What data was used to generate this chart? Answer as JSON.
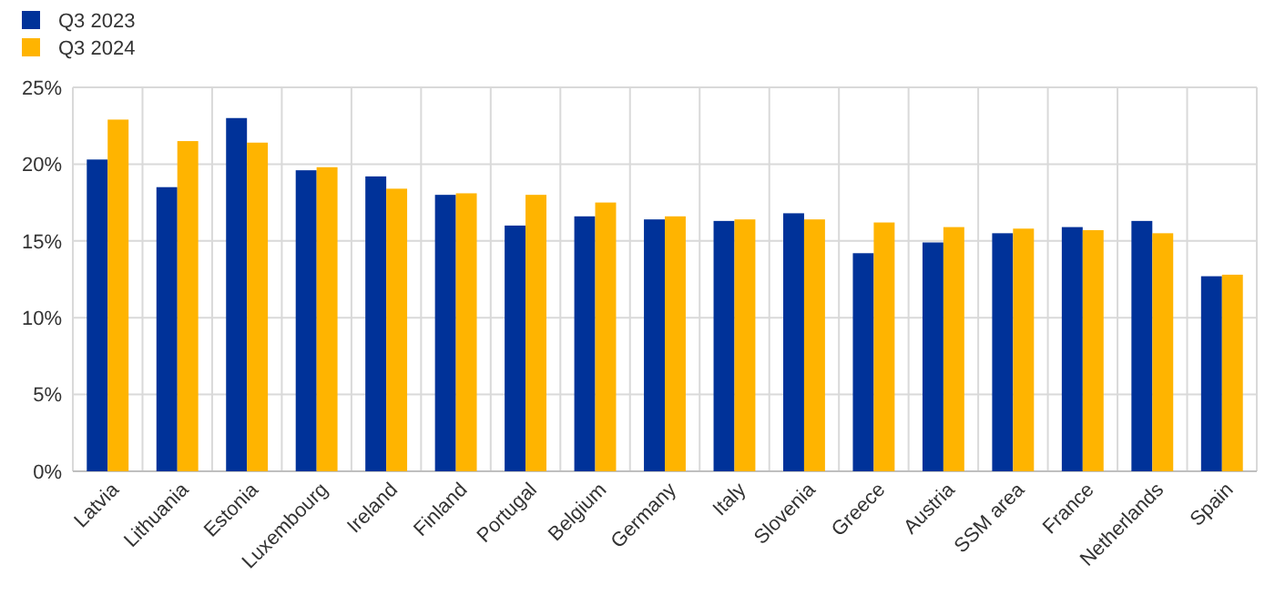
{
  "chart_data": {
    "type": "bar",
    "categories": [
      "Latvia",
      "Lithuania",
      "Estonia",
      "Luxembourg",
      "Ireland",
      "Finland",
      "Portugal",
      "Belgium",
      "Germany",
      "Italy",
      "Slovenia",
      "Greece",
      "Austria",
      "SSM area",
      "France",
      "Netherlands",
      "Spain"
    ],
    "series": [
      {
        "name": "Q3 2023",
        "color": "#003299",
        "values": [
          20.3,
          18.5,
          23.0,
          19.6,
          19.2,
          18.0,
          16.0,
          16.6,
          16.4,
          16.3,
          16.8,
          14.2,
          14.9,
          15.5,
          15.9,
          16.3,
          12.7
        ]
      },
      {
        "name": "Q3 2024",
        "color": "#ffb400",
        "values": [
          22.9,
          21.5,
          21.4,
          19.8,
          18.4,
          18.1,
          18.0,
          17.5,
          16.6,
          16.4,
          16.4,
          16.2,
          15.9,
          15.8,
          15.7,
          15.5,
          12.8
        ]
      }
    ],
    "ylim": [
      0,
      25
    ],
    "yticks": [
      {
        "value": 0,
        "label": "0%"
      },
      {
        "value": 5,
        "label": "5%"
      },
      {
        "value": 10,
        "label": "10%"
      },
      {
        "value": 15,
        "label": "15%"
      },
      {
        "value": 20,
        "label": "20%"
      },
      {
        "value": 25,
        "label": "25%"
      }
    ],
    "grid": true,
    "legend": "top left"
  }
}
